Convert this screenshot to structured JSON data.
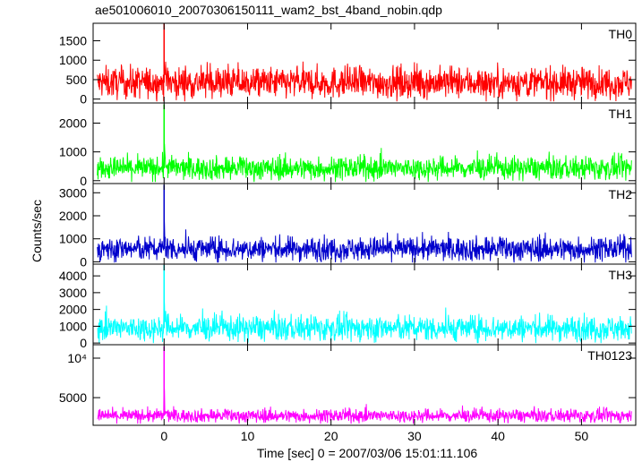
{
  "chart_data": {
    "type": "line",
    "title": "ae501006010_20070306150111_wam2_bst_4band_nobin.qdp",
    "xlabel": "Time [sec] 0 = 2007/03/06 15:01:11.106",
    "ylabel": "Counts/sec",
    "xlim": [
      -8.5,
      56.5
    ],
    "xticks": [
      0,
      10,
      20,
      30,
      40,
      50
    ],
    "tick_labels_x": [
      "0",
      "10",
      "20",
      "30",
      "40",
      "50"
    ],
    "grid": false,
    "panels": [
      {
        "name": "TH0",
        "color": "#ff0000",
        "ylim": [
          -100,
          1950
        ],
        "yticks": [
          0,
          500,
          1000,
          1500
        ],
        "tick_labels_y": [
          "0",
          "500",
          "1000",
          "1500"
        ],
        "baseline": 420,
        "noise": 200,
        "peak": 1950,
        "peak_time": 0.0,
        "x_start": -8.0,
        "x_end": 56.0,
        "x": [
          -8,
          -4,
          0,
          4,
          8,
          12,
          16,
          20,
          24,
          28,
          32,
          36,
          40,
          44,
          48,
          52,
          56
        ],
        "y": [
          430,
          440,
          1950,
          450,
          430,
          440,
          460,
          430,
          440,
          450,
          440,
          430,
          440,
          430,
          440,
          430,
          420
        ]
      },
      {
        "name": "TH1",
        "color": "#00ff00",
        "ylim": [
          -100,
          2700
        ],
        "yticks": [
          0,
          1000,
          2000
        ],
        "tick_labels_y": [
          "0",
          "1000",
          "2000"
        ],
        "baseline": 430,
        "noise": 200,
        "peak": 2650,
        "peak_time": 0.0,
        "x_start": -8.0,
        "x_end": 56.0,
        "x": [
          -8,
          -4,
          0,
          4,
          8,
          12,
          16,
          20,
          24,
          28,
          32,
          36,
          40,
          44,
          48,
          52,
          56
        ],
        "y": [
          440,
          430,
          2650,
          470,
          440,
          440,
          450,
          440,
          440,
          440,
          440,
          430,
          440,
          430,
          440,
          430,
          430
        ]
      },
      {
        "name": "TH2",
        "color": "#0000cc",
        "ylim": [
          -100,
          3400
        ],
        "yticks": [
          0,
          1000,
          2000,
          3000
        ],
        "tick_labels_y": [
          "0",
          "1000",
          "2000",
          "3000"
        ],
        "baseline": 560,
        "noise": 260,
        "peak": 3350,
        "peak_time": 0.0,
        "x_start": -8.0,
        "x_end": 56.0,
        "x": [
          -8,
          -4,
          0,
          4,
          8,
          12,
          16,
          20,
          24,
          28,
          32,
          36,
          40,
          44,
          48,
          52,
          56
        ],
        "y": [
          560,
          570,
          3350,
          600,
          570,
          560,
          570,
          560,
          570,
          560,
          570,
          560,
          580,
          570,
          560,
          570,
          560
        ]
      },
      {
        "name": "TH3",
        "color": "#00ffff",
        "ylim": [
          -100,
          4700
        ],
        "yticks": [
          0,
          1000,
          2000,
          3000,
          4000
        ],
        "tick_labels_y": [
          "0",
          "1000",
          "2000",
          "3000",
          "4000"
        ],
        "baseline": 880,
        "noise": 380,
        "peak": 4650,
        "peak_time": 0.0,
        "x_start": -8.0,
        "x_end": 56.0,
        "x": [
          -8,
          -4,
          0,
          4,
          8,
          12,
          16,
          20,
          24,
          28,
          32,
          36,
          40,
          44,
          48,
          52,
          56
        ],
        "y": [
          880,
          890,
          4650,
          940,
          880,
          880,
          890,
          880,
          880,
          890,
          880,
          870,
          880,
          880,
          890,
          880,
          870
        ]
      },
      {
        "name": "TH0123",
        "color": "#ff00ff",
        "ylim": [
          1500,
          11700
        ],
        "yticks": [
          5000,
          10000
        ],
        "tick_labels_y": [
          "5000",
          "10⁴"
        ],
        "baseline": 2700,
        "noise": 420,
        "peak": 11500,
        "peak_time": 0.0,
        "x_start": -8.0,
        "x_end": 56.0,
        "x": [
          -8,
          -4,
          0,
          4,
          8,
          12,
          16,
          20,
          24,
          28,
          32,
          36,
          40,
          44,
          48,
          52,
          56
        ],
        "y": [
          2700,
          2720,
          11500,
          2800,
          2720,
          2710,
          2720,
          2710,
          2720,
          2710,
          2720,
          2700,
          2710,
          2720,
          2750,
          2710,
          2700
        ]
      }
    ]
  }
}
